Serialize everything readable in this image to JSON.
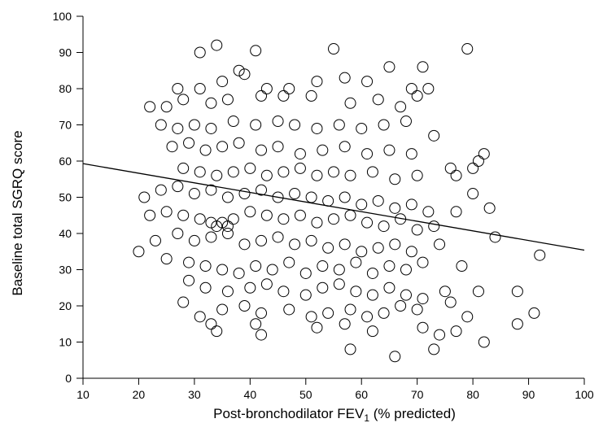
{
  "chart_data": {
    "type": "scatter",
    "title": "",
    "xlabel": "Post-bronchodilator FEV",
    "xlabel_subscript": "1",
    "xlabel_suffix": " (% predicted)",
    "ylabel": "Baseline total SGRQ score",
    "xlim": [
      10,
      100
    ],
    "ylim": [
      0,
      100
    ],
    "x_ticks": [
      "10",
      "20",
      "30",
      "40",
      "50",
      "60",
      "70",
      "80",
      "90",
      "100"
    ],
    "y_ticks": [
      "0",
      "10",
      "20",
      "30",
      "40",
      "50",
      "60",
      "70",
      "80",
      "90",
      "100"
    ],
    "grid": false,
    "legend": "none",
    "marker": "open-circle",
    "trendline": {
      "x": [
        10,
        100
      ],
      "y": [
        59.3,
        35.4
      ]
    },
    "points": [
      [
        31,
        90
      ],
      [
        34,
        92
      ],
      [
        41,
        90.5
      ],
      [
        55,
        91
      ],
      [
        79,
        91
      ],
      [
        65,
        86
      ],
      [
        71,
        86
      ],
      [
        27,
        80
      ],
      [
        31,
        80
      ],
      [
        35,
        82
      ],
      [
        39,
        84
      ],
      [
        38,
        85
      ],
      [
        43,
        80
      ],
      [
        47,
        80
      ],
      [
        52,
        82
      ],
      [
        57,
        83
      ],
      [
        61,
        82
      ],
      [
        69,
        80
      ],
      [
        72,
        80
      ],
      [
        22,
        75
      ],
      [
        25,
        75
      ],
      [
        28,
        77
      ],
      [
        33,
        76
      ],
      [
        36,
        77
      ],
      [
        42,
        78
      ],
      [
        46,
        78
      ],
      [
        51,
        78
      ],
      [
        58,
        76
      ],
      [
        63,
        77
      ],
      [
        67,
        75
      ],
      [
        70,
        78
      ],
      [
        24,
        70
      ],
      [
        27,
        69
      ],
      [
        30,
        70
      ],
      [
        33,
        69
      ],
      [
        37,
        71
      ],
      [
        41,
        70
      ],
      [
        45,
        71
      ],
      [
        48,
        70
      ],
      [
        52,
        69
      ],
      [
        56,
        70
      ],
      [
        60,
        69
      ],
      [
        64,
        70
      ],
      [
        68,
        71
      ],
      [
        73,
        67
      ],
      [
        26,
        64
      ],
      [
        29,
        65
      ],
      [
        32,
        63
      ],
      [
        35,
        64
      ],
      [
        38,
        65
      ],
      [
        42,
        63
      ],
      [
        45,
        64
      ],
      [
        49,
        62
      ],
      [
        53,
        63
      ],
      [
        57,
        64
      ],
      [
        61,
        62
      ],
      [
        65,
        63
      ],
      [
        69,
        62
      ],
      [
        76,
        58
      ],
      [
        81,
        60
      ],
      [
        82,
        62
      ],
      [
        28,
        58
      ],
      [
        31,
        57
      ],
      [
        34,
        56
      ],
      [
        37,
        57
      ],
      [
        40,
        58
      ],
      [
        43,
        56
      ],
      [
        46,
        57
      ],
      [
        49,
        58
      ],
      [
        52,
        56
      ],
      [
        55,
        57
      ],
      [
        58,
        56
      ],
      [
        62,
        57
      ],
      [
        66,
        55
      ],
      [
        70,
        56
      ],
      [
        77,
        56
      ],
      [
        80,
        58
      ],
      [
        21,
        50
      ],
      [
        24,
        52
      ],
      [
        27,
        53
      ],
      [
        30,
        51
      ],
      [
        33,
        52
      ],
      [
        36,
        50
      ],
      [
        39,
        51
      ],
      [
        42,
        52
      ],
      [
        45,
        50
      ],
      [
        48,
        51
      ],
      [
        51,
        50
      ],
      [
        54,
        49
      ],
      [
        57,
        50
      ],
      [
        60,
        48
      ],
      [
        63,
        49
      ],
      [
        66,
        47
      ],
      [
        69,
        48
      ],
      [
        72,
        46
      ],
      [
        80,
        51
      ],
      [
        83,
        47
      ],
      [
        22,
        45
      ],
      [
        25,
        46
      ],
      [
        28,
        45
      ],
      [
        31,
        44
      ],
      [
        33,
        43
      ],
      [
        34,
        42
      ],
      [
        35,
        43
      ],
      [
        36,
        42
      ],
      [
        37,
        44
      ],
      [
        40,
        46
      ],
      [
        43,
        45
      ],
      [
        46,
        44
      ],
      [
        49,
        45
      ],
      [
        52,
        43
      ],
      [
        55,
        44
      ],
      [
        58,
        45
      ],
      [
        61,
        43
      ],
      [
        64,
        42
      ],
      [
        67,
        44
      ],
      [
        70,
        41
      ],
      [
        73,
        42
      ],
      [
        77,
        46
      ],
      [
        20,
        35
      ],
      [
        23,
        38
      ],
      [
        27,
        40
      ],
      [
        30,
        38
      ],
      [
        33,
        39
      ],
      [
        36,
        40
      ],
      [
        39,
        37
      ],
      [
        42,
        38
      ],
      [
        45,
        39
      ],
      [
        48,
        37
      ],
      [
        51,
        38
      ],
      [
        54,
        36
      ],
      [
        57,
        37
      ],
      [
        60,
        35
      ],
      [
        63,
        36
      ],
      [
        66,
        37
      ],
      [
        69,
        35
      ],
      [
        74,
        37
      ],
      [
        84,
        39
      ],
      [
        92,
        34
      ],
      [
        25,
        33
      ],
      [
        29,
        32
      ],
      [
        32,
        31
      ],
      [
        35,
        30
      ],
      [
        38,
        29
      ],
      [
        41,
        31
      ],
      [
        44,
        30
      ],
      [
        47,
        32
      ],
      [
        50,
        29
      ],
      [
        53,
        31
      ],
      [
        56,
        30
      ],
      [
        59,
        32
      ],
      [
        62,
        29
      ],
      [
        65,
        31
      ],
      [
        68,
        30
      ],
      [
        71,
        32
      ],
      [
        78,
        31
      ],
      [
        29,
        27
      ],
      [
        32,
        25
      ],
      [
        36,
        24
      ],
      [
        40,
        25
      ],
      [
        43,
        26
      ],
      [
        46,
        24
      ],
      [
        50,
        23
      ],
      [
        53,
        25
      ],
      [
        56,
        26
      ],
      [
        59,
        24
      ],
      [
        62,
        23
      ],
      [
        65,
        25
      ],
      [
        68,
        23
      ],
      [
        71,
        22
      ],
      [
        75,
        24
      ],
      [
        81,
        24
      ],
      [
        88,
        24
      ],
      [
        28,
        21
      ],
      [
        31,
        17
      ],
      [
        35,
        19
      ],
      [
        39,
        20
      ],
      [
        42,
        18
      ],
      [
        47,
        19
      ],
      [
        51,
        17
      ],
      [
        54,
        18
      ],
      [
        58,
        19
      ],
      [
        61,
        17
      ],
      [
        64,
        18
      ],
      [
        67,
        20
      ],
      [
        70,
        19
      ],
      [
        76,
        21
      ],
      [
        79,
        17
      ],
      [
        91,
        18
      ],
      [
        33,
        15
      ],
      [
        34,
        13
      ],
      [
        41,
        15
      ],
      [
        42,
        12
      ],
      [
        52,
        14
      ],
      [
        57,
        15
      ],
      [
        62,
        13
      ],
      [
        71,
        14
      ],
      [
        74,
        12
      ],
      [
        77,
        13
      ],
      [
        82,
        10
      ],
      [
        88,
        15
      ],
      [
        58,
        8
      ],
      [
        66,
        6
      ],
      [
        73,
        8
      ]
    ]
  }
}
